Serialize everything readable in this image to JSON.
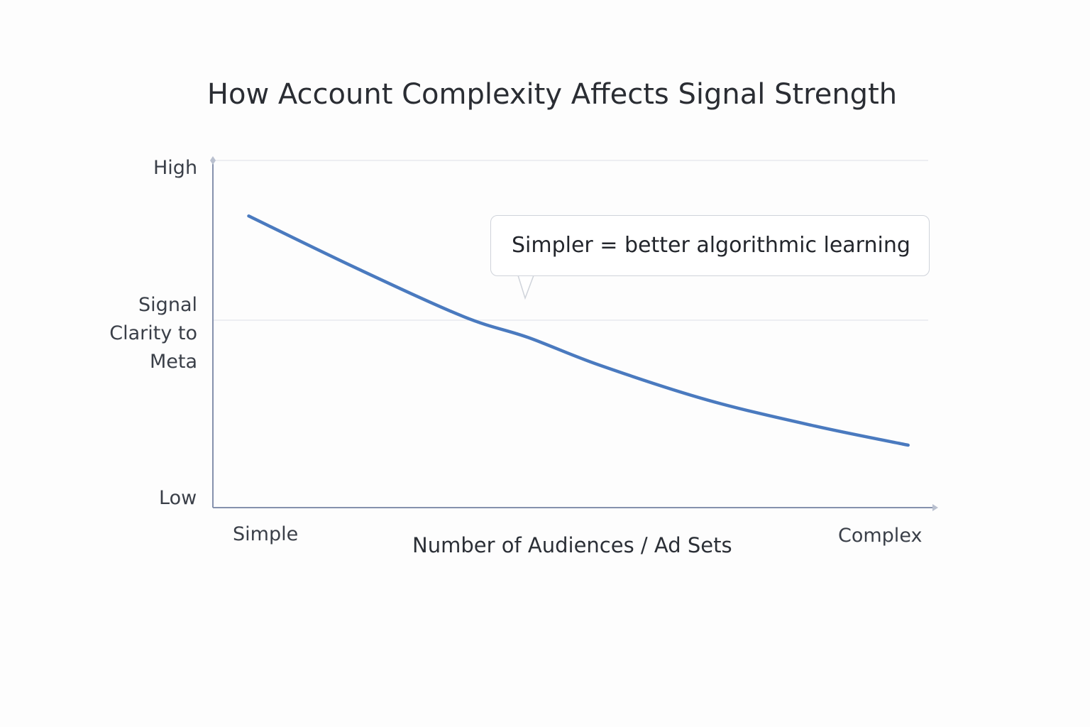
{
  "chart_data": {
    "type": "line",
    "title": "How Account Complexity Affects Signal Strength",
    "xlabel": "Number of Audiences / Ad Sets",
    "ylabel": "Signal Clarity to Meta",
    "x_tick_labels": {
      "start": "Simple",
      "end": "Complex"
    },
    "y_tick_labels": {
      "low": "Low",
      "high": "High"
    },
    "xlim": [
      0,
      1
    ],
    "ylim": [
      0,
      1
    ],
    "grid": true,
    "series": [
      {
        "x": [
          0.05,
          0.2,
          0.35,
          0.44,
          0.54,
          0.69,
          0.84,
          0.97
        ],
        "y": [
          0.84,
          0.69,
          0.55,
          0.49,
          0.41,
          0.31,
          0.235,
          0.18
        ],
        "color": "#4a7abf"
      }
    ],
    "annotation": "Simpler = better algorithmic learning"
  }
}
